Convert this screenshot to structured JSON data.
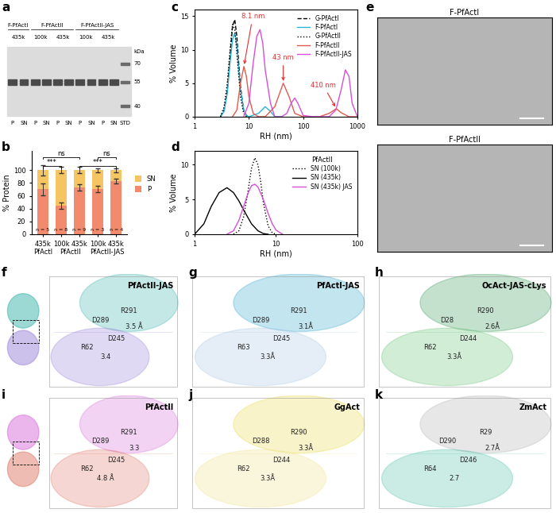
{
  "chart_data": [
    {
      "panel": "b",
      "type": "bar",
      "stacked": true,
      "categories": [
        "435k",
        "100k",
        "435k",
        "100k",
        "435k"
      ],
      "groups": [
        {
          "label": "PfActI",
          "categories": [
            0
          ]
        },
        {
          "label": "PfActII",
          "categories": [
            1,
            2
          ]
        },
        {
          "label": "PfActII-JAS",
          "categories": [
            3,
            4
          ]
        }
      ],
      "series": [
        {
          "name": "P",
          "color": "#f28b6e",
          "values": [
            70,
            45,
            73,
            71,
            83
          ],
          "errors": [
            9,
            5,
            5,
            5,
            4
          ]
        },
        {
          "name": "SN",
          "color": "#f5c463",
          "values": [
            30,
            55,
            27,
            29,
            17
          ],
          "errors": [
            8,
            5,
            5,
            3,
            3
          ]
        }
      ],
      "n_labels": [
        "n = 5",
        "n = 8",
        "n = 9",
        "n = 3",
        "n = 4"
      ],
      "significance": [
        {
          "from": 0,
          "to": 1,
          "label": "***",
          "y": 106
        },
        {
          "from": 2,
          "to": 4,
          "label": "***",
          "y": 106
        },
        {
          "from": 0,
          "to": 2,
          "label": "ns",
          "y": 120
        },
        {
          "from": 3,
          "to": 4,
          "label": "ns",
          "y": 120
        }
      ],
      "ylabel": "% Protein",
      "ylim": [
        0,
        130
      ],
      "yticks": [
        0,
        20,
        40,
        60,
        80,
        100
      ],
      "legend": "right"
    },
    {
      "panel": "c",
      "type": "line",
      "log": "x",
      "xlabel": "RH (nm)",
      "ylabel": "% Volume",
      "xlim": [
        1,
        1000
      ],
      "xticks": [
        1,
        10,
        100,
        1000
      ],
      "ylim": [
        0,
        16
      ],
      "yticks": [
        0,
        5,
        10,
        15
      ],
      "legend": "upper right",
      "series": [
        {
          "name": "G-PfActI",
          "color": "#000000",
          "line_style": "dashed",
          "x": [
            3,
            3.5,
            4,
            4.5,
            5,
            5.5,
            6,
            6.5,
            7,
            8,
            9,
            10
          ],
          "values": [
            0,
            1,
            4,
            9,
            13.5,
            14.5,
            12,
            8,
            4.5,
            1,
            0.2,
            0
          ]
        },
        {
          "name": "F-PfActI",
          "color": "#29b6d6",
          "line_style": "solid",
          "x": [
            3,
            3.5,
            4,
            4.5,
            5,
            5.5,
            6,
            6.5,
            7,
            8,
            9,
            10,
            15,
            20,
            25,
            30,
            40
          ],
          "values": [
            0,
            0.8,
            3.5,
            8,
            11.5,
            12.5,
            10.5,
            7,
            4,
            1,
            0.2,
            0,
            0.5,
            1.5,
            0.8,
            0,
            0
          ]
        },
        {
          "name": "G-PfActII",
          "color": "#000000",
          "line_style": "dotted",
          "x": [
            3,
            3.5,
            4,
            4.5,
            5,
            5.5,
            6,
            7,
            8,
            9
          ],
          "values": [
            0,
            1.5,
            5,
            10,
            13.8,
            13,
            9.5,
            3,
            0.5,
            0
          ]
        },
        {
          "name": "F-PfActII",
          "color": "#e05a4f",
          "line_style": "solid",
          "x": [
            5,
            6,
            7,
            8.1,
            9,
            10,
            12,
            15,
            20,
            30,
            43,
            55,
            70,
            100,
            150,
            200,
            300,
            410,
            500,
            700,
            1000
          ],
          "values": [
            0,
            1,
            5,
            7.5,
            6,
            3,
            0.5,
            0,
            0,
            1.5,
            5,
            3,
            0.5,
            0,
            0,
            0,
            0.5,
            1.2,
            0.6,
            0,
            0
          ]
        },
        {
          "name": "F-PfActII-JAS",
          "color": "#d64fd6",
          "line_style": "solid",
          "x": [
            8,
            10,
            12,
            14,
            16,
            18,
            20,
            25,
            30,
            40,
            50,
            60,
            70,
            80,
            100,
            150,
            200,
            300,
            400,
            500,
            600,
            700,
            800,
            1000
          ],
          "values": [
            0,
            2,
            8,
            12,
            13,
            11,
            7,
            2,
            0,
            0,
            0.5,
            2,
            2.8,
            2,
            0.2,
            0,
            0,
            0,
            1,
            4,
            7,
            6,
            2,
            0
          ]
        }
      ],
      "annotations": [
        {
          "text": "8.1 nm",
          "x": 8.1,
          "y": 7.5,
          "color": "#e03030"
        },
        {
          "text": "43 nm",
          "x": 43,
          "y": 5,
          "color": "#e03030"
        },
        {
          "text": "410 nm",
          "x": 410,
          "y": 1.2,
          "color": "#e03030"
        }
      ]
    },
    {
      "panel": "d",
      "type": "line",
      "log": "x",
      "xlabel": "RH (nm)",
      "ylabel": "% Volume",
      "xlim": [
        1,
        100
      ],
      "xticks": [
        1,
        10,
        100
      ],
      "ylim": [
        0,
        12
      ],
      "yticks": [
        0,
        5,
        10
      ],
      "legend": "upper right",
      "legend_title": "PfActII",
      "series": [
        {
          "name": "SN (100k)",
          "color": "#000000",
          "line_style": "dotted",
          "x": [
            3,
            3.5,
            4,
            4.5,
            5,
            5.5,
            6,
            6.5,
            7,
            8,
            9,
            10
          ],
          "values": [
            0,
            0.5,
            2.5,
            6,
            9.5,
            11,
            10,
            7.5,
            4.5,
            1.2,
            0.2,
            0
          ]
        },
        {
          "name": "SN (435k)",
          "color": "#000000",
          "line_style": "solid",
          "x": [
            1,
            1.3,
            1.6,
            2,
            2.5,
            3,
            3.5,
            4,
            5,
            6,
            7,
            8
          ],
          "values": [
            0,
            1.5,
            4,
            6,
            6.7,
            6,
            4.8,
            3.5,
            1.5,
            0.5,
            0.1,
            0
          ]
        },
        {
          "name": "SN (435k) JAS",
          "color": "#d64fd6",
          "line_style": "solid",
          "x": [
            2.5,
            3,
            3.5,
            4,
            4.5,
            5,
            5.5,
            6,
            7,
            8,
            9,
            10,
            12
          ],
          "values": [
            0,
            0.5,
            2,
            4,
            5.8,
            7,
            7.2,
            6.8,
            5,
            3,
            1.5,
            0.6,
            0
          ]
        }
      ]
    }
  ],
  "panels": [
    {
      "panel": "a",
      "kind": "gel",
      "groups": [
        {
          "label": "F-PfActI",
          "fractions": [
            "435k"
          ]
        },
        {
          "label": "F-PfActII",
          "fractions": [
            "100k",
            "435k"
          ]
        },
        {
          "label": "F-PfActII-JAS",
          "fractions": [
            "100k",
            "435k"
          ]
        }
      ],
      "lane_labels": [
        "P",
        "SN"
      ],
      "marker_lane": "STD",
      "marker_unit": "kDa",
      "markers": [
        70,
        55,
        40
      ]
    },
    {
      "panel": "e",
      "kind": "micrographs",
      "images": [
        {
          "title": "F-PfActI"
        },
        {
          "title": "F-PfActII"
        }
      ]
    },
    {
      "panel": "f",
      "kind": "structure",
      "title": "PfActII-JAS",
      "overview": true,
      "colors": [
        "#3bb4ad",
        "#9a84d8"
      ],
      "labels": [
        "R291",
        "D289",
        "3.5 Å",
        "D245",
        "R62",
        "3.4"
      ]
    },
    {
      "panel": "g",
      "kind": "structure",
      "title": "PfActI-JAS",
      "overview": false,
      "colors": [
        "#39a9cf",
        "#a9c9e4"
      ],
      "labels": [
        "R291",
        "D289",
        "3.1Å",
        "D245",
        "R63",
        "3.3Å"
      ]
    },
    {
      "panel": "h",
      "kind": "structure",
      "title": "OcAct-JAS-cLys",
      "overview": false,
      "colors": [
        "#3a9e5a",
        "#6cc47a"
      ],
      "labels": [
        "R290",
        "D28",
        "2.6Å",
        "D244",
        "R62",
        "3.3Å"
      ]
    },
    {
      "panel": "i",
      "kind": "structure",
      "title": "PfActII",
      "overview": true,
      "colors": [
        "#d86fd8",
        "#e07a6a"
      ],
      "labels": [
        "R291",
        "D289",
        "3.3",
        "D245",
        "R62",
        "4.8 Å"
      ]
    },
    {
      "panel": "j",
      "kind": "structure",
      "title": "GgAct",
      "overview": false,
      "colors": [
        "#e8d94a",
        "#f0e48c"
      ],
      "labels": [
        "R290",
        "D288",
        "3.3Å",
        "D244",
        "R62",
        "3.3Å"
      ]
    },
    {
      "panel": "k",
      "kind": "structure",
      "title": "ZmAct",
      "overview": false,
      "colors": [
        "#b0b0b0",
        "#55c2a8"
      ],
      "labels": [
        "R29",
        "D290",
        "2.7Å",
        "D246",
        "R64",
        "2.7"
      ]
    }
  ]
}
